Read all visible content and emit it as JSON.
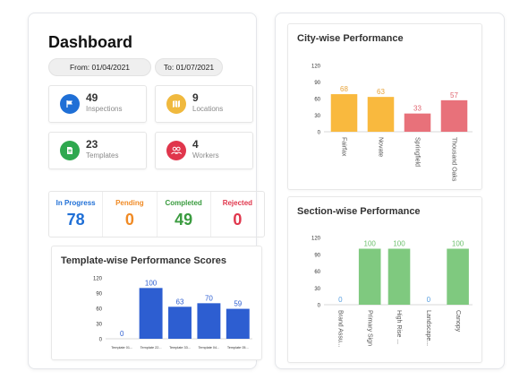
{
  "dashboard": {
    "title": "Dashboard",
    "date_from": "From: 01/04/2021",
    "date_to": "To: 01/07/2021",
    "stats": [
      {
        "value": "49",
        "label": "Inspections",
        "icon": "flag-icon",
        "color": "#1f6fd6"
      },
      {
        "value": "9",
        "label": "Locations",
        "icon": "map-icon",
        "color": "#f0b93e"
      },
      {
        "value": "23",
        "label": "Templates",
        "icon": "document-icon",
        "color": "#2fa84f"
      },
      {
        "value": "4",
        "label": "Workers",
        "icon": "users-icon",
        "color": "#e0364c"
      }
    ],
    "statuses": [
      {
        "label": "In Progress",
        "value": "78",
        "color": "#1f6fd6"
      },
      {
        "label": "Pending",
        "value": "0",
        "color": "#f08a24"
      },
      {
        "label": "Completed",
        "value": "49",
        "color": "#3a9b3f"
      },
      {
        "label": "Rejected",
        "value": "0",
        "color": "#e0364c"
      }
    ]
  },
  "chart_data": [
    {
      "type": "bar",
      "title": "Template-wise Performance Scores",
      "categories": [
        "Template 01...",
        "Template 22...",
        "Template 33...",
        "Template 04...",
        "Template 05..."
      ],
      "values": [
        0,
        100,
        63,
        70,
        59
      ],
      "ylim": [
        0,
        120
      ],
      "yticks": [
        0,
        30,
        60,
        90,
        120
      ],
      "color": "#2d5ed1",
      "label_color": "#2d5ed1"
    },
    {
      "type": "bar",
      "title": "City-wise Performance",
      "categories": [
        "Fairfax",
        "Novate",
        "Springfield",
        "Thousand Oaks"
      ],
      "values": [
        68,
        63,
        33,
        57
      ],
      "ylim": [
        0,
        120
      ],
      "yticks": [
        0,
        30,
        60,
        90,
        120
      ],
      "colors": [
        "#f9b93e",
        "#f9b93e",
        "#e8717a",
        "#e8717a"
      ],
      "label_colors": [
        "#e7a33a",
        "#e7a33a",
        "#e06570",
        "#e06570"
      ]
    },
    {
      "type": "bar",
      "title": "Section-wise Performance",
      "categories": [
        "Brand Assu...",
        "Primary Sign",
        "High Rise ...",
        "Landscape...",
        "Canopy"
      ],
      "values": [
        0,
        100,
        100,
        0,
        100
      ],
      "ylim": [
        0,
        120
      ],
      "yticks": [
        0,
        30,
        60,
        90,
        120
      ],
      "colors": [
        "#7fc97f",
        "#7fc97f",
        "#7fc97f",
        "#7fc97f",
        "#7fc97f"
      ],
      "label_colors": [
        "#5aa0e0",
        "#6cbf6c",
        "#6cbf6c",
        "#5aa0e0",
        "#6cbf6c"
      ]
    }
  ]
}
